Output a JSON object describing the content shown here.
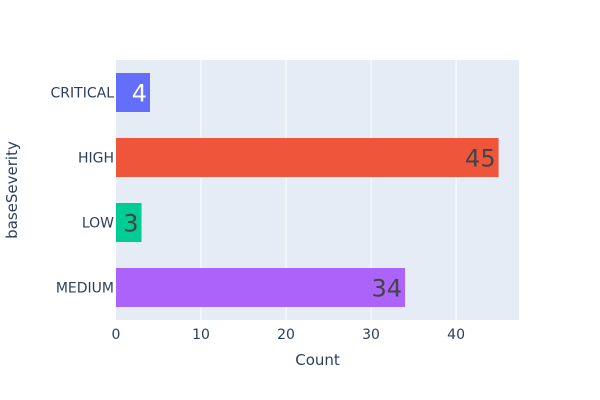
{
  "chart_data": {
    "type": "bar",
    "orientation": "horizontal",
    "categories": [
      "CRITICAL",
      "HIGH",
      "LOW",
      "MEDIUM"
    ],
    "values": [
      4,
      45,
      3,
      34
    ],
    "bar_colors": [
      "#636efa",
      "#ef553b",
      "#00cc96",
      "#ab63fa"
    ],
    "label_colors": [
      "#ffffff",
      "#444444",
      "#444444",
      "#444444"
    ],
    "xlabel": "Count",
    "ylabel": "baseSeverity",
    "xlim": [
      0,
      47.4
    ],
    "xticks": [
      0,
      10,
      20,
      30,
      40
    ],
    "grid": true,
    "plot_background": "#e5ecf6",
    "grid_color": "#ffffff",
    "tick_color": "#2a3f5f"
  }
}
